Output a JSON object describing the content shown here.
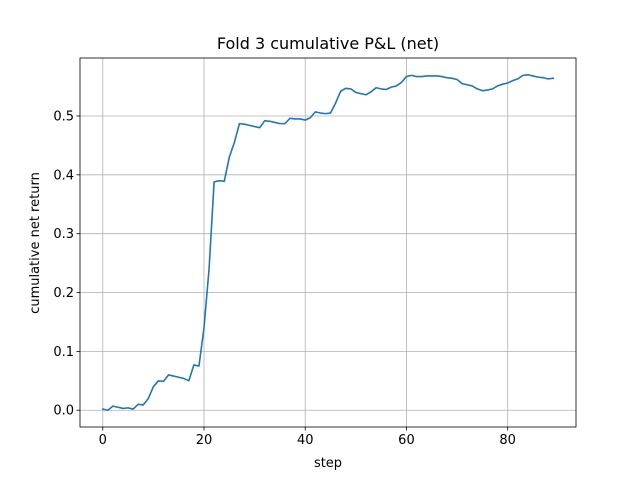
{
  "chart_data": {
    "type": "line",
    "title": "Fold 3 cumulative P&L (net)",
    "xlabel": "step",
    "ylabel": "cumulative net return",
    "xlim": [
      -4.5,
      93.5
    ],
    "ylim": [
      -0.0285,
      0.5985
    ],
    "xticks": [
      0,
      20,
      40,
      60,
      80
    ],
    "yticks": [
      0.0,
      0.1,
      0.2,
      0.3,
      0.4,
      0.5
    ],
    "ytick_labels": [
      "0.0",
      "0.1",
      "0.2",
      "0.3",
      "0.4",
      "0.5"
    ],
    "grid": true,
    "series": [
      {
        "color": "#1f77b4",
        "x": [
          0,
          1,
          2,
          3,
          4,
          5,
          6,
          7,
          8,
          9,
          10,
          11,
          12,
          13,
          14,
          15,
          16,
          17,
          18,
          19,
          20,
          21,
          22,
          23,
          24,
          25,
          26,
          27,
          28,
          29,
          30,
          31,
          32,
          33,
          34,
          35,
          36,
          37,
          38,
          39,
          40,
          41,
          42,
          43,
          44,
          45,
          46,
          47,
          48,
          49,
          50,
          51,
          52,
          53,
          54,
          55,
          56,
          57,
          58,
          59,
          60,
          61,
          62,
          63,
          64,
          65,
          66,
          67,
          68,
          69,
          70,
          71,
          72,
          73,
          74,
          75,
          76,
          77,
          78,
          79,
          80,
          81,
          82,
          83,
          84,
          85,
          86,
          87,
          88,
          89
        ],
        "y": [
          0.002,
          0.0,
          0.007,
          0.005,
          0.003,
          0.004,
          0.002,
          0.01,
          0.009,
          0.02,
          0.04,
          0.05,
          0.049,
          0.06,
          0.058,
          0.056,
          0.054,
          0.05,
          0.077,
          0.075,
          0.14,
          0.24,
          0.388,
          0.39,
          0.389,
          0.43,
          0.455,
          0.487,
          0.486,
          0.484,
          0.482,
          0.48,
          0.492,
          0.491,
          0.489,
          0.487,
          0.487,
          0.496,
          0.495,
          0.495,
          0.493,
          0.497,
          0.507,
          0.505,
          0.504,
          0.505,
          0.522,
          0.542,
          0.547,
          0.546,
          0.54,
          0.538,
          0.536,
          0.541,
          0.548,
          0.546,
          0.545,
          0.549,
          0.551,
          0.557,
          0.567,
          0.569,
          0.567,
          0.567,
          0.568,
          0.568,
          0.568,
          0.567,
          0.565,
          0.564,
          0.562,
          0.555,
          0.553,
          0.551,
          0.546,
          0.543,
          0.544,
          0.546,
          0.551,
          0.554,
          0.556,
          0.56,
          0.563,
          0.569,
          0.57,
          0.568,
          0.566,
          0.565,
          0.563,
          0.564
        ]
      }
    ]
  }
}
